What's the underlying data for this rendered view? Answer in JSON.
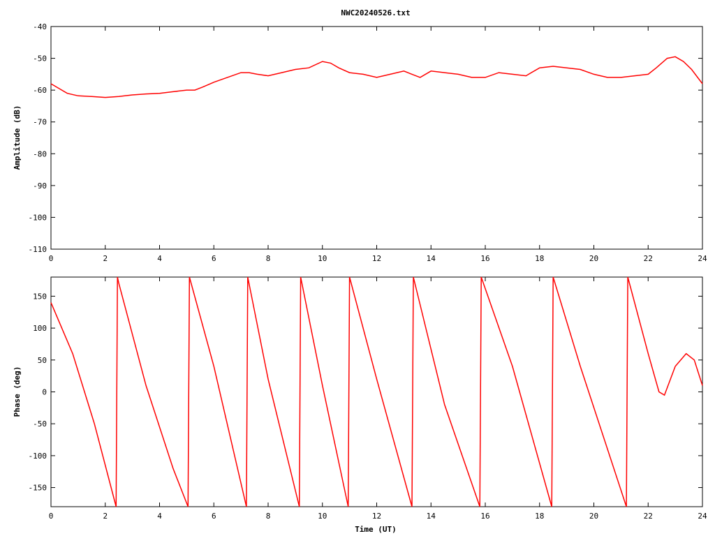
{
  "chart_data": [
    {
      "type": "line",
      "title": "NWC20240526.txt",
      "xlabel": "",
      "ylabel": "Amplitude (dB)",
      "xlim": [
        0,
        24
      ],
      "ylim": [
        -110,
        -40
      ],
      "xticks": [
        "0",
        "2",
        "4",
        "6",
        "8",
        "10",
        "12",
        "14",
        "16",
        "18",
        "20",
        "22",
        "24"
      ],
      "yticks": [
        "-40",
        "-50",
        "-60",
        "-70",
        "-80",
        "-90",
        "-100",
        "-110"
      ],
      "color": "#ff0000",
      "series": [
        {
          "x": [
            0,
            0.3,
            0.6,
            1,
            1.5,
            2,
            2.5,
            3,
            3.5,
            4,
            4.5,
            5,
            5.3,
            5.6,
            6,
            6.5,
            7,
            7.3,
            7.6,
            8,
            8.5,
            9,
            9.5,
            10,
            10.3,
            10.6,
            11,
            11.5,
            12,
            12.5,
            13,
            13.3,
            13.6,
            14,
            14.5,
            15,
            15.5,
            16,
            16.5,
            17,
            17.5,
            18,
            18.5,
            19,
            19.5,
            20,
            20.5,
            21,
            21.5,
            22,
            22.3,
            22.7,
            23,
            23.3,
            23.6,
            24
          ],
          "y": [
            -58,
            -59.5,
            -61,
            -61.8,
            -62,
            -62.3,
            -62,
            -61.5,
            -61.2,
            -61,
            -60.5,
            -60,
            -60,
            -59,
            -57.5,
            -56,
            -54.5,
            -54.5,
            -55,
            -55.5,
            -54.5,
            -53.5,
            -53,
            -51,
            -51.5,
            -53,
            -54.5,
            -55,
            -56,
            -55,
            -54,
            -55,
            -56,
            -54,
            -54.5,
            -55,
            -56,
            -56,
            -54.5,
            -55,
            -55.5,
            -53,
            -52.5,
            -53,
            -53.5,
            -55,
            -56,
            -56,
            -55.5,
            -55,
            -53,
            -50,
            -49.5,
            -51,
            -53.5,
            -58
          ]
        }
      ]
    },
    {
      "type": "line",
      "title": "",
      "xlabel": "Time (UT)",
      "ylabel": "Phase (deg)",
      "xlim": [
        0,
        24
      ],
      "ylim": [
        -180,
        180
      ],
      "xticks": [
        "0",
        "2",
        "4",
        "6",
        "8",
        "10",
        "12",
        "14",
        "16",
        "18",
        "20",
        "22",
        "24"
      ],
      "yticks": [
        "150",
        "100",
        "50",
        "0",
        "-50",
        "-100",
        "-150"
      ],
      "color": "#ff0000",
      "series": [
        {
          "x": [
            0,
            0.8,
            1.6,
            2.4,
            2.45,
            2.5,
            3.5,
            4.5,
            5.05,
            5.1,
            6,
            7.2,
            7.25,
            8,
            9.15,
            9.2,
            10,
            10.95,
            11,
            12,
            13.3,
            13.35,
            14.5,
            15.8,
            15.85,
            17,
            18.45,
            18.5,
            19.5,
            21.2,
            21.25,
            22,
            22.4,
            22.6,
            23,
            23.4,
            23.7,
            24
          ],
          "y": [
            140,
            60,
            -50,
            -180,
            180,
            170,
            10,
            -120,
            -180,
            180,
            40,
            -180,
            180,
            20,
            -180,
            180,
            10,
            -180,
            180,
            20,
            -180,
            180,
            -20,
            -180,
            180,
            40,
            -180,
            180,
            40,
            -180,
            180,
            60,
            0,
            -5,
            40,
            60,
            50,
            10
          ]
        }
      ]
    }
  ]
}
